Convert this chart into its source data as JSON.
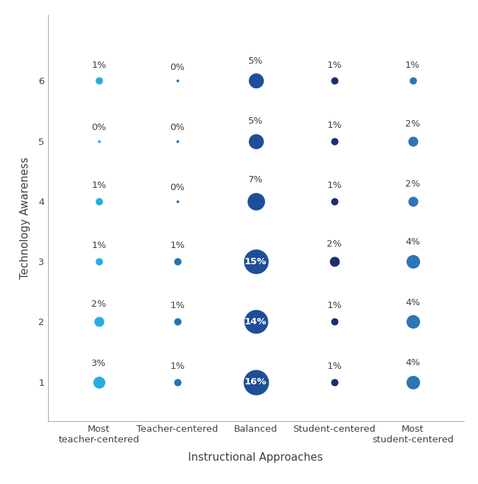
{
  "x_categories": [
    "Most\nteacher-centered",
    "Teacher-centered",
    "Balanced",
    "Student-centered",
    "Most\nstudent-centered"
  ],
  "xlabel": "Instructional Approaches",
  "ylabel": "Technology Awareness",
  "data": {
    "1": {
      "1": 3,
      "2": 2,
      "3": 1,
      "4": 1,
      "5": 0,
      "6": 1
    },
    "2": {
      "1": 1,
      "2": 1,
      "3": 1,
      "4": 0,
      "5": 0,
      "6": 0
    },
    "3": {
      "1": 16,
      "2": 14,
      "3": 15,
      "4": 7,
      "5": 5,
      "6": 5
    },
    "4": {
      "1": 1,
      "2": 1,
      "3": 2,
      "4": 1,
      "5": 1,
      "6": 1
    },
    "5": {
      "1": 4,
      "2": 4,
      "3": 4,
      "4": 2,
      "5": 2,
      "6": 1
    }
  },
  "col_colors": {
    "1": "#29ABE2",
    "2": "#2176AE",
    "3": "#1F4E99",
    "4": "#1A2F6B",
    "5": "#2E75B6"
  },
  "scale_factor": 55,
  "min_size": 8,
  "background_color": "#ffffff",
  "text_color": "#404040",
  "label_fontsize": 9.5,
  "axis_label_fontsize": 11,
  "white_label_threshold": 13
}
